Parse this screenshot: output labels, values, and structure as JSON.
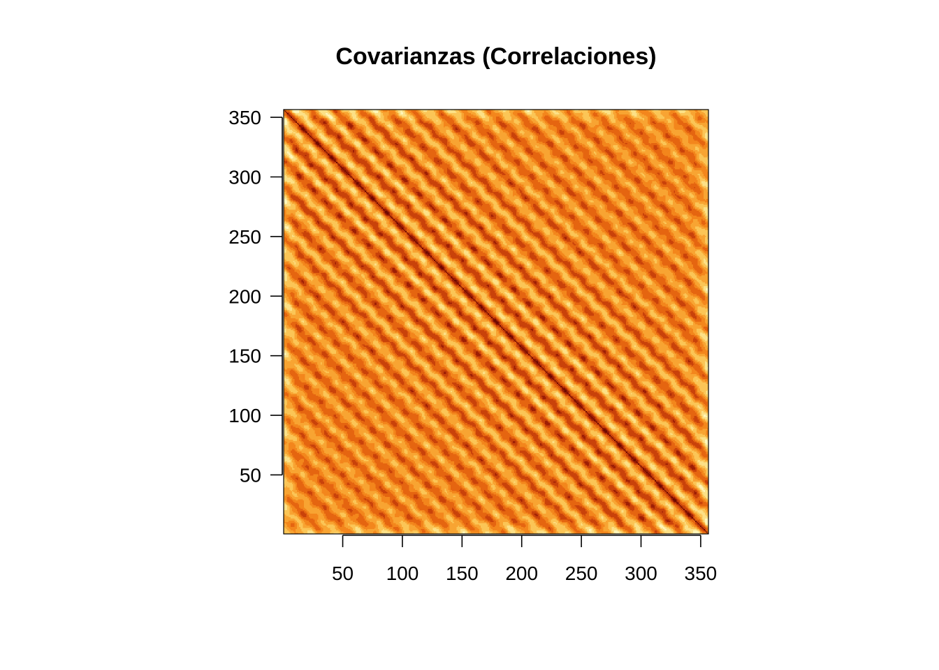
{
  "chart_data": {
    "type": "heatmap",
    "title": "Covarianzas (Correlaciones)",
    "xlabel": "",
    "ylabel": "",
    "n": 356,
    "xlim": [
      0.5,
      356.5
    ],
    "ylim": [
      0.5,
      356.5
    ],
    "x_ticks": [
      50,
      100,
      150,
      200,
      250,
      300,
      350
    ],
    "y_ticks": [
      50,
      100,
      150,
      200,
      250,
      300,
      350
    ],
    "x_tick_labels": [
      "50",
      "100",
      "150",
      "200",
      "250",
      "300",
      "350"
    ],
    "y_tick_labels": [
      "50",
      "100",
      "150",
      "200",
      "250",
      "300",
      "350"
    ],
    "matrix_orientation": "main diagonal runs from top-left to bottom-right (row index reversed)",
    "value_range": [
      -1,
      1
    ],
    "diagonal_value": 1,
    "pattern": "banded, oscillating correlation decaying away from the diagonal",
    "color_scale": "heat",
    "colors": [
      "#FFF5B8",
      "#FCE086",
      "#FBC556",
      "#F8A432",
      "#F3861C",
      "#E56510",
      "#C9420A",
      "#9E1F05",
      "#6E0A02"
    ],
    "grid": false,
    "legend": "none"
  }
}
